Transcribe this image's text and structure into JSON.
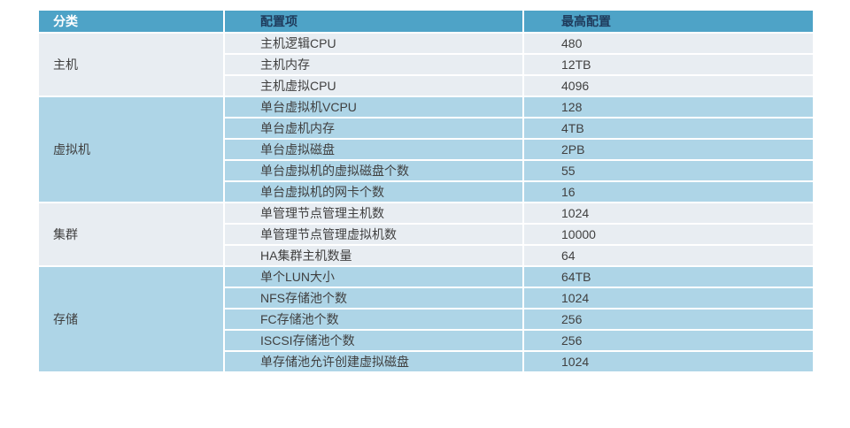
{
  "chart_data": {
    "type": "table",
    "title": "",
    "columns": [
      "分类",
      "配置项",
      "最高配置"
    ],
    "groups": [
      {
        "category": "主机",
        "rows": [
          {
            "item": "主机逻辑CPU",
            "value": "480"
          },
          {
            "item": "主机内存",
            "value": "12TB"
          },
          {
            "item": "主机虚拟CPU",
            "value": "4096"
          }
        ]
      },
      {
        "category": "虚拟机",
        "rows": [
          {
            "item": "单台虚拟机VCPU",
            "value": "128"
          },
          {
            "item": "单台虚机内存",
            "value": "4TB"
          },
          {
            "item": "单台虚拟磁盘",
            "value": "2PB"
          },
          {
            "item": "单台虚拟机的虚拟磁盘个数",
            "value": "55"
          },
          {
            "item": "单台虚拟机的网卡个数",
            "value": "16"
          }
        ]
      },
      {
        "category": "集群",
        "rows": [
          {
            "item": "单管理节点管理主机数",
            "value": "1024"
          },
          {
            "item": "单管理节点管理虚拟机数",
            "value": "10000"
          },
          {
            "item": "HA集群主机数量",
            "value": "64"
          }
        ]
      },
      {
        "category": "存储",
        "rows": [
          {
            "item": "单个LUN大小",
            "value": "64TB"
          },
          {
            "item": "NFS存储池个数",
            "value": "1024"
          },
          {
            "item": "FC存储池个数",
            "value": "256"
          },
          {
            "item": "ISCSI存储池个数",
            "value": "256"
          },
          {
            "item": "单存储池允许创建虚拟磁盘",
            "value": "1024"
          }
        ]
      }
    ]
  },
  "colors": {
    "header_bg": "#4EA3C7",
    "row_light": "#E8EDF2",
    "row_blue": "#AED5E7",
    "header_category_text": "#FFFFFF",
    "header_text": "#1F3B5C",
    "body_text": "#404040"
  }
}
